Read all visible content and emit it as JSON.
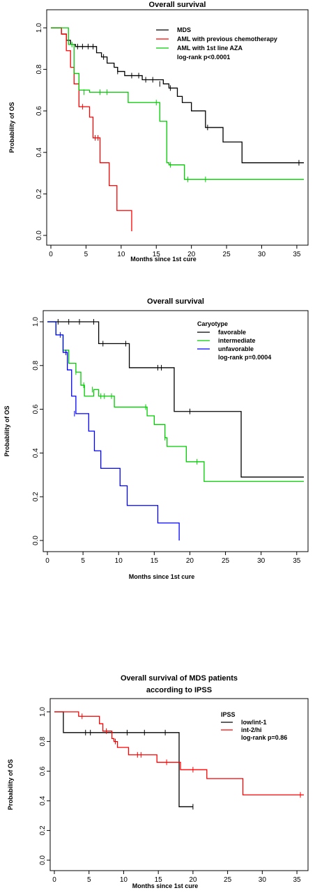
{
  "chart_data": [
    {
      "type": "line",
      "title": [
        "Overall survival"
      ],
      "xlabel": "Months since 1st cure",
      "ylabel": "Probability of OS",
      "xlim": [
        0,
        36
      ],
      "ylim": [
        0,
        1
      ],
      "xticks": [
        "0",
        "5",
        "10",
        "15",
        "20",
        "25",
        "30",
        "35"
      ],
      "yticks": [
        "0.0",
        "0.2",
        "0.4",
        "0.6",
        "0.8",
        "1.0"
      ],
      "legend": {
        "title": "",
        "entries": [
          "MDS",
          "AML with previous chemotherapy",
          "AML with 1st line AZA"
        ],
        "note": "log-rank p<0.0001",
        "placement": "top-right"
      },
      "series": [
        {
          "name": "MDS",
          "color": "#000000",
          "x": [
            0,
            1.5,
            2.2,
            2.8,
            3.5,
            6.5,
            7.2,
            8,
            9,
            9.5,
            10.5,
            13,
            16,
            16.8,
            18,
            18.7,
            20,
            22,
            24.5,
            27.2,
            36
          ],
          "y": [
            1,
            0.97,
            0.94,
            0.92,
            0.91,
            0.88,
            0.86,
            0.83,
            0.81,
            0.79,
            0.77,
            0.75,
            0.73,
            0.71,
            0.67,
            0.64,
            0.6,
            0.52,
            0.45,
            0.35,
            0.35
          ],
          "censor": [
            [
              3.8,
              0.91
            ],
            [
              4.5,
              0.91
            ],
            [
              5.3,
              0.91
            ],
            [
              6,
              0.91
            ],
            [
              7.5,
              0.86
            ],
            [
              9.5,
              0.79
            ],
            [
              11.5,
              0.77
            ],
            [
              12.5,
              0.77
            ],
            [
              13.5,
              0.75
            ],
            [
              14.5,
              0.75
            ],
            [
              15.5,
              0.73
            ],
            [
              17,
              0.71
            ],
            [
              22.3,
              0.52
            ],
            [
              35.3,
              0.35
            ]
          ]
        },
        {
          "name": "AML with previous chemotherapy",
          "color": "#ff0000",
          "x": [
            0,
            1.5,
            2.2,
            2.8,
            3.3,
            4,
            5.5,
            6,
            7,
            8.3,
            9.4,
            11.5
          ],
          "y": [
            1,
            0.97,
            0.89,
            0.81,
            0.73,
            0.62,
            0.57,
            0.47,
            0.35,
            0.24,
            0.12,
            0.02
          ],
          "censor": [
            [
              4.5,
              0.62
            ],
            [
              6.3,
              0.47
            ],
            [
              6.7,
              0.47
            ]
          ]
        },
        {
          "name": "AML with 1st line AZA",
          "color": "#00cc00",
          "x": [
            0,
            2.5,
            3.3,
            4,
            5.5,
            11,
            15.5,
            16.5,
            16.8,
            19,
            36
          ],
          "y": [
            1,
            0.92,
            0.78,
            0.7,
            0.69,
            0.64,
            0.55,
            0.35,
            0.34,
            0.27,
            0.27
          ],
          "censor": [
            [
              3,
              0.92
            ],
            [
              4.7,
              0.69
            ],
            [
              7,
              0.69
            ],
            [
              8,
              0.69
            ],
            [
              15,
              0.64
            ],
            [
              17,
              0.34
            ],
            [
              19.5,
              0.27
            ],
            [
              22,
              0.27
            ]
          ]
        }
      ]
    },
    {
      "type": "line",
      "title": [
        "Overall survival"
      ],
      "xlabel": "Months since 1st cure",
      "ylabel": "Probability of OS",
      "xlim": [
        0,
        36
      ],
      "ylim": [
        0,
        1
      ],
      "xticks": [
        "0",
        "5",
        "10",
        "15",
        "20",
        "25",
        "30",
        "35"
      ],
      "yticks": [
        "0.0",
        "0.2",
        "0.4",
        "0.6",
        "0.8",
        "1.0"
      ],
      "legend": {
        "title": "Caryotype",
        "entries": [
          "favorable",
          "intermediate",
          "unfavorable"
        ],
        "note": "log-rank p=0.0004",
        "placement": "top-right"
      },
      "series": [
        {
          "name": "favorable",
          "color": "#000000",
          "x": [
            0,
            7.2,
            11.5,
            17.8,
            27.2,
            36
          ],
          "y": [
            1,
            0.9,
            0.79,
            0.59,
            0.29,
            0.29
          ],
          "censor": [
            [
              1.5,
              1
            ],
            [
              3,
              1
            ],
            [
              4.5,
              1
            ],
            [
              6.5,
              1
            ],
            [
              7.8,
              0.9
            ],
            [
              11,
              0.9
            ],
            [
              15.5,
              0.79
            ],
            [
              16,
              0.79
            ],
            [
              20,
              0.59
            ]
          ]
        },
        {
          "name": "intermediate",
          "color": "#00cc00",
          "x": [
            0,
            1.2,
            2.2,
            3,
            4,
            4.7,
            5.2,
            6.5,
            7.2,
            9.4,
            14,
            15,
            16.5,
            16.8,
            19.5,
            22,
            36
          ],
          "y": [
            1,
            0.94,
            0.87,
            0.81,
            0.77,
            0.71,
            0.66,
            0.69,
            0.66,
            0.61,
            0.57,
            0.53,
            0.47,
            0.43,
            0.36,
            0.27,
            0.27
          ],
          "censor": [
            [
              4,
              0.77
            ],
            [
              5.1,
              0.71
            ],
            [
              6.3,
              0.69
            ],
            [
              7.5,
              0.66
            ],
            [
              8,
              0.66
            ],
            [
              9,
              0.66
            ],
            [
              13.8,
              0.61
            ],
            [
              16.5,
              0.47
            ],
            [
              21,
              0.36
            ]
          ]
        },
        {
          "name": "unfavorable",
          "color": "#0000ff",
          "x": [
            0,
            1.2,
            2.2,
            2.8,
            3.4,
            4,
            5.8,
            6.6,
            7.5,
            10.2,
            11.2,
            15.5,
            18.5
          ],
          "y": [
            1,
            0.94,
            0.86,
            0.78,
            0.66,
            0.58,
            0.5,
            0.41,
            0.33,
            0.25,
            0.16,
            0.08,
            0.0
          ],
          "censor": [
            [
              1.8,
              0.94
            ],
            [
              2.6,
              0.86
            ],
            [
              3.8,
              0.58
            ]
          ]
        }
      ]
    },
    {
      "type": "line",
      "title": [
        "Overall survival of MDS patients",
        "according to IPSS"
      ],
      "xlabel": "Months since 1st cure",
      "ylabel": "Probability of OS",
      "xlim": [
        0,
        36
      ],
      "ylim": [
        0,
        1
      ],
      "xticks": [
        "0",
        "5",
        "10",
        "15",
        "20",
        "25",
        "30",
        "35"
      ],
      "yticks": [
        "0.0",
        "0.2",
        "0.4",
        "0.6",
        "0.8",
        "1.0"
      ],
      "legend": {
        "title": "IPSS",
        "entries": [
          "low/int-1",
          "int-2/hi"
        ],
        "note": "log-rank p=0.86",
        "placement": "top-right"
      },
      "series": [
        {
          "name": "low/int-1",
          "color": "#000000",
          "x": [
            0,
            1.3,
            18,
            20
          ],
          "y": [
            1,
            0.86,
            0.36,
            0.36
          ],
          "censor": [
            [
              4.5,
              0.86
            ],
            [
              5.2,
              0.86
            ],
            [
              10.5,
              0.86
            ],
            [
              13,
              0.86
            ],
            [
              16,
              0.86
            ],
            [
              20,
              0.36
            ]
          ]
        },
        {
          "name": "int-2/hi",
          "color": "#ff0000",
          "x": [
            0,
            3.5,
            6.5,
            7,
            8.3,
            8.6,
            9.1,
            10.7,
            14.8,
            18.2,
            22,
            27.2,
            36
          ],
          "y": [
            1,
            0.97,
            0.92,
            0.87,
            0.82,
            0.8,
            0.76,
            0.71,
            0.66,
            0.61,
            0.55,
            0.44,
            0.44
          ],
          "censor": [
            [
              4,
              0.97
            ],
            [
              7.5,
              0.87
            ],
            [
              8.8,
              0.8
            ],
            [
              12,
              0.71
            ],
            [
              12.5,
              0.71
            ],
            [
              16.2,
              0.66
            ],
            [
              20,
              0.61
            ],
            [
              35.5,
              0.44
            ]
          ]
        }
      ]
    }
  ]
}
